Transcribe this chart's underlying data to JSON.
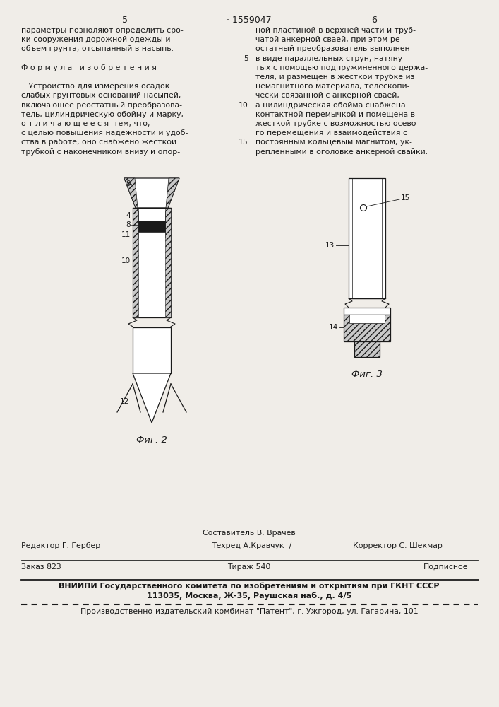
{
  "bg_color": "#f0ede8",
  "text_color": "#1a1a1a",
  "page_number_left": "5",
  "page_number_center": "· 1559047",
  "page_number_right": "6",
  "left_col_text": [
    "параметры позноляют определить сро-",
    "ки сооружения дорожной одежды и",
    "объем грунта, отсыпанный в насыпь.",
    "",
    "Ф о р м у л а   и з о б р е т е н и я",
    "",
    "   Устройство для измерения осадок",
    "слабых грунтовых оснований насыпей,",
    "включающее реостатный преобразова-",
    "тель, цилиндрическую обойму и марку,",
    "о т л и ч а ю щ е е с я  тем, что,",
    "с целью повышения надежности и удоб-",
    "ства в работе, оно снабжено жесткой",
    "трубкой с наконечником внизу и опор-"
  ],
  "right_col_text": [
    "ной пластиной в верхней части и труб-",
    "чатой анкерной сваей, при этом ре-",
    "остатный преобразователь выполнен",
    "в виде параллельных струн, натяну-",
    "тых с помощью подпружиненного держа-",
    "теля, и размещен в жесткой трубке из",
    "немагнитного материала, телескопи-",
    "чески связанной с анкерной сваей,",
    "а цилиндрическая обойма снабжена",
    "контактной перемычкой и помещена в",
    "жесткой трубке с возможностью осево-",
    "го перемещения и взаимодействия с",
    "постоянным кольцевым магнитом, ук-",
    "репленными в оголовке анкерной свайки."
  ],
  "fig2_label": "Фиг. 2",
  "fig3_label": "Фиг. 3",
  "footer_editor": "Редактор Г. Гербер",
  "footer_composer": "Составитель В. Врачев",
  "footer_techred": "Техред А.Кравчук",
  "footer_corrector": "Корректор С. Шекмар",
  "footer_order": "Заказ 823",
  "footer_tirazh": "Тираж 540",
  "footer_podpisnoe": "Подписное",
  "footer_vniip1": "ВНИИПИ Государственного комитета по изобретениям и открытиям при ГКНТ СССР",
  "footer_vniip2": "113035, Москва, Ж-35, Раушская наб., д. 4/5",
  "footer_prod": "Производственно-издательский комбинат \"Патент\", г. Ужгород, ул. Гагарина, 101"
}
